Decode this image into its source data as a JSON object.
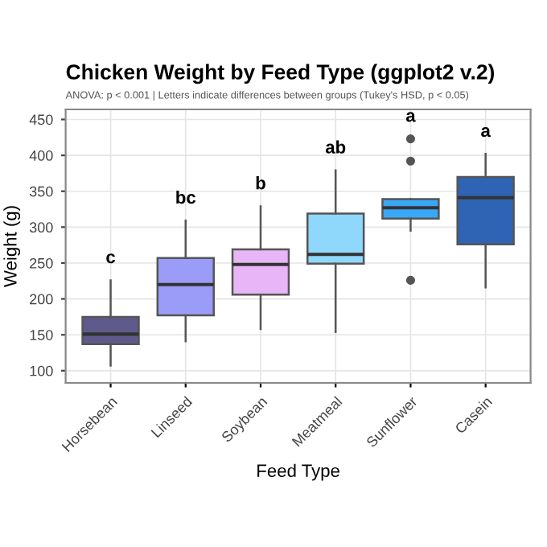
{
  "chart_data": {
    "type": "box",
    "title": "Chicken Weight by Feed Type (ggplot2 v.2)",
    "subtitle": "ANOVA: p < 0.001 | Letters indicate differences between groups (Tukey's HSD, p < 0.05)",
    "xlabel": "Feed Type",
    "ylabel": "Weight (g)",
    "categories": [
      "Horsebean",
      "Linseed",
      "Soybean",
      "Meatmeal",
      "Sunflower",
      "Casein"
    ],
    "colors": [
      "#5f5a8c",
      "#9b9cf7",
      "#e8b6f6",
      "#8fd8fb",
      "#3aa7f6",
      "#2f63b3"
    ],
    "boxes": [
      {
        "low": 107,
        "q1": 137,
        "median": 151,
        "q3": 175,
        "high": 226
      },
      {
        "low": 141,
        "q1": 177,
        "median": 220,
        "q3": 257,
        "high": 309
      },
      {
        "low": 158,
        "q1": 206,
        "median": 248,
        "q3": 269,
        "high": 329
      },
      {
        "low": 154,
        "q1": 249,
        "median": 262,
        "q3": 319,
        "high": 379
      },
      {
        "low": 295,
        "q1": 312,
        "median": 327,
        "q3": 339,
        "high": 339,
        "outliers": [
          423,
          392,
          226
        ]
      },
      {
        "low": 216,
        "q1": 276,
        "median": 341,
        "q3": 370,
        "high": 402
      }
    ],
    "annotations": [
      "c",
      "bc",
      "b",
      "ab",
      "a",
      "a"
    ],
    "ylim": [
      83,
      464
    ],
    "yticks": [
      100,
      150,
      200,
      250,
      300,
      350,
      400,
      450
    ],
    "grid": true
  }
}
